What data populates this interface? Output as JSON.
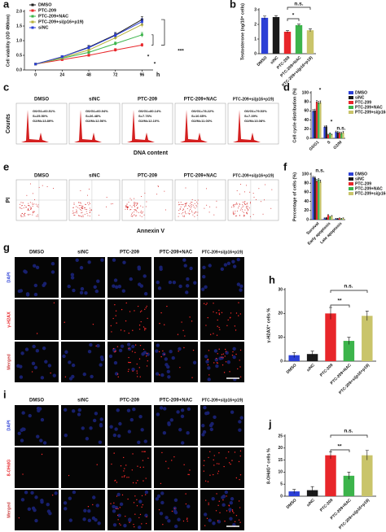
{
  "chart_data": [
    {
      "label": "a",
      "type": "line",
      "y_label": "Cell viability (OD 490nm)",
      "x_label": "h",
      "x": [
        0,
        24,
        48,
        72,
        96
      ],
      "xlim": [
        -10,
        106
      ],
      "xticks": [
        0,
        24,
        48,
        72,
        96
      ],
      "ylim": [
        0,
        2
      ],
      "yticks": [
        {
          "value": 0,
          "label": "0.0"
        },
        {
          "value": 0.5,
          "label": "0.5"
        },
        {
          "value": 1,
          "label": "1.0"
        },
        {
          "value": 1.5,
          "label": "1.5"
        },
        {
          "value": 2,
          "label": "2.0"
        }
      ],
      "series": [
        {
          "name": "DMSO",
          "color": "#1a1a1a",
          "values": [
            0.2,
            0.45,
            0.78,
            1.2,
            1.72
          ],
          "errors": [
            0.02,
            0.04,
            0.06,
            0.08,
            0.1
          ]
        },
        {
          "name": "PTC-209",
          "color": "#e8262a",
          "values": [
            0.2,
            0.35,
            0.5,
            0.68,
            0.85
          ],
          "errors": [
            0.02,
            0.03,
            0.04,
            0.05,
            0.06
          ]
        },
        {
          "name": "PTC-209+NAC",
          "color": "#3cb44b",
          "values": [
            0.2,
            0.4,
            0.6,
            0.9,
            1.2
          ],
          "errors": [
            0.02,
            0.03,
            0.05,
            0.06,
            0.08
          ]
        },
        {
          "name": "PTC-209+si(p16+p19)",
          "color": "#b5b03a",
          "values": [
            0.2,
            0.42,
            0.68,
            1.1,
            1.55
          ],
          "errors": [
            0.02,
            0.04,
            0.05,
            0.07,
            0.09
          ]
        },
        {
          "name": "siNC",
          "color": "#2b3fd6",
          "values": [
            0.2,
            0.45,
            0.76,
            1.18,
            1.65
          ],
          "errors": [
            0.02,
            0.04,
            0.06,
            0.08,
            0.1
          ]
        }
      ],
      "annotations": [
        "*",
        "*",
        "***"
      ]
    },
    {
      "label": "b",
      "type": "bar",
      "y_label": "Testosterone (ng/10⁶ cells)",
      "categories": [
        "DMSO",
        "siNC",
        "PTC-209",
        "PTC-209+NAC",
        "PTC-209+si(p16+p19)"
      ],
      "values": [
        2.45,
        2.5,
        1.5,
        1.95,
        1.6
      ],
      "errors": [
        0.12,
        0.1,
        0.08,
        0.07,
        0.1
      ],
      "colors": [
        "#2b3fd6",
        "#1a1a1a",
        "#e8262a",
        "#3cb44b",
        "#c9c46a"
      ],
      "ylim": [
        0,
        3
      ],
      "yticks": [
        0,
        1,
        2,
        3
      ],
      "annotations": [
        "n.s.",
        "*"
      ]
    },
    {
      "label": "d",
      "type": "bar",
      "y_label": "Cell cycle distribution (%)",
      "categories": [
        "G0/G1",
        "S",
        "G2/M"
      ],
      "ylim": [
        0,
        100
      ],
      "yticks": [
        0,
        20,
        40,
        60,
        80,
        100
      ],
      "series": [
        {
          "name": "DMSO",
          "color": "#2b3fd6",
          "values": [
            60,
            25,
            14
          ],
          "errors": [
            3,
            2,
            2
          ]
        },
        {
          "name": "siNC",
          "color": "#1a1a1a",
          "values": [
            61,
            26,
            13
          ],
          "errors": [
            3,
            2,
            2
          ]
        },
        {
          "name": "PTC-209",
          "color": "#e8262a",
          "values": [
            80,
            8,
            12
          ],
          "errors": [
            3,
            1,
            2
          ]
        },
        {
          "name": "PTC-209+NAC",
          "color": "#3cb44b",
          "values": [
            78,
            11,
            11
          ],
          "errors": [
            3,
            1,
            2
          ]
        },
        {
          "name": "PTC-209+si(p16+p19)",
          "color": "#c9c46a",
          "values": [
            79,
            8,
            13
          ],
          "errors": [
            3,
            1,
            2
          ]
        }
      ],
      "annotations": [
        "*",
        "*",
        "n.s."
      ]
    },
    {
      "label": "f",
      "type": "bar",
      "y_label": "Percentage of cells (%)",
      "categories": [
        "Survival",
        "Early apoptosis",
        "Late apoptosis"
      ],
      "ylim": [
        0,
        100
      ],
      "yticks": [
        0,
        20,
        40,
        60,
        80,
        100
      ],
      "series": [
        {
          "name": "DMSO",
          "color": "#2b3fd6",
          "values": [
            93,
            3,
            2
          ],
          "errors": [
            2,
            1,
            1
          ]
        },
        {
          "name": "siNC",
          "color": "#1a1a1a",
          "values": [
            92,
            4,
            2
          ],
          "errors": [
            2,
            1,
            1
          ]
        },
        {
          "name": "PTC-209",
          "color": "#e8262a",
          "values": [
            85,
            10,
            3
          ],
          "errors": [
            3,
            1,
            1
          ]
        },
        {
          "name": "PTC-209+NAC",
          "color": "#3cb44b",
          "values": [
            88,
            6,
            2
          ],
          "errors": [
            2,
            1,
            1
          ]
        },
        {
          "name": "PTC-209+si(p16+p19)",
          "color": "#c9c46a",
          "values": [
            84,
            8,
            3
          ],
          "errors": [
            3,
            1,
            1
          ]
        }
      ],
      "annotations": [
        "n.s."
      ]
    },
    {
      "label": "h",
      "type": "bar",
      "y_label": "γ-H2AX⁺ cells %",
      "categories": [
        "DMSO",
        "siNC",
        "PTC-209",
        "PTC-209+NAC",
        "PTC-209+si(p16+p19)"
      ],
      "values": [
        2.5,
        3,
        20,
        8.5,
        19
      ],
      "errors": [
        1,
        1.2,
        2.5,
        1.5,
        2
      ],
      "colors": [
        "#2b3fd6",
        "#1a1a1a",
        "#e8262a",
        "#3cb44b",
        "#c9c46a"
      ],
      "ylim": [
        0,
        30
      ],
      "yticks": [
        0,
        10,
        20,
        30
      ],
      "annotations": [
        "**",
        "n.s."
      ]
    },
    {
      "label": "j",
      "type": "bar",
      "y_label": "8-OHdG⁺ cells %",
      "categories": [
        "DMSO",
        "siNC",
        "PTC-209",
        "PTC-209+NAC",
        "PTC-209+si(p16+p19)"
      ],
      "values": [
        2,
        2.5,
        17,
        8.5,
        17
      ],
      "errors": [
        0.8,
        1.5,
        1.5,
        1.5,
        2
      ],
      "colors": [
        "#2b3fd6",
        "#1a1a1a",
        "#e8262a",
        "#3cb44b",
        "#c9c46a"
      ],
      "ylim": [
        0,
        25
      ],
      "yticks": [
        0,
        5,
        10,
        15,
        20,
        25
      ],
      "annotations": [
        "**",
        "n.s."
      ]
    }
  ],
  "image_panels": [
    {
      "label": "c",
      "titles": [
        "DMSO",
        "siNC",
        "PTC-209",
        "PTC-209+NAC",
        "PTC-209+si(p16+p19)"
      ],
      "stats": [
        [
          "G0/G1=60.51%",
          "S=25.50%",
          "G2/M=13.89%"
        ],
        [
          "G0/G1=60.94%",
          "S=26.48%",
          "G2/M=12.56%"
        ],
        [
          "G0/G1=80.14%",
          "S=7.76%",
          "G2/M=12.10%"
        ],
        [
          "G0/G1=78.22%",
          "S=10.65%",
          "G2/M=11.03%"
        ],
        [
          "G0/G1=79.53%",
          "S=7.39%",
          "G2/M=13.08%"
        ]
      ],
      "y_label": "Counts",
      "x_label": "DNA content"
    },
    {
      "label": "e",
      "titles": [
        "DMSO",
        "siNC",
        "PTC-209",
        "PTC-209+NAC",
        "PTC-209+si(p16+p19)"
      ],
      "y_label": "PI",
      "x_label": "Annexin V"
    },
    {
      "label": "g",
      "titles": [
        "DMSO",
        "siNC",
        "PTC-209",
        "PTC-209+NAC",
        "PTC-209+si(p16+p19)"
      ],
      "rows": [
        "DAPI",
        "γ-H2AX",
        "Merged"
      ]
    },
    {
      "label": "i",
      "titles": [
        "DMSO",
        "siNC",
        "PTC-209",
        "PTC-209+NAC",
        "PTC-209+si(p16+p19)"
      ],
      "rows": [
        "DAPI",
        "8-OHdG",
        "Merged"
      ]
    }
  ]
}
